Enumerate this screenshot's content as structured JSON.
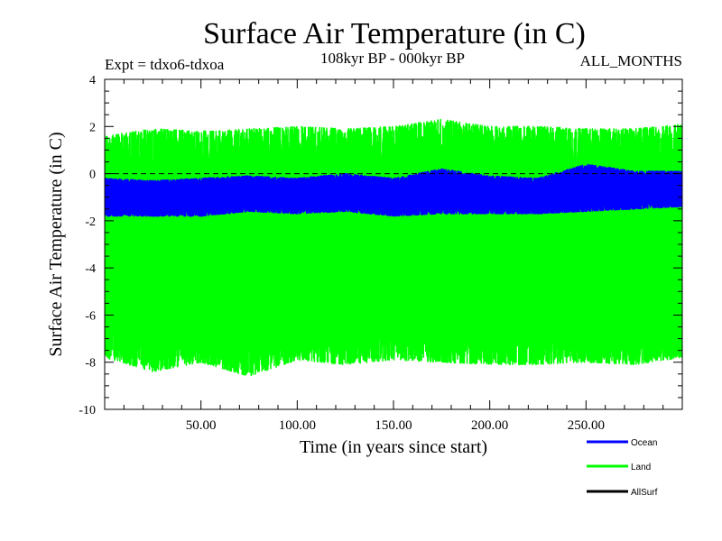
{
  "chart_data": {
    "type": "line",
    "title": "Surface Air Temperature (in C)",
    "subtitle": "108kyr BP - 000kyr BP",
    "left_note": "Expt = tdxo6-tdxoa",
    "right_note": "ALL_MONTHS",
    "xlabel": "Time (in years since start)",
    "ylabel": "Surface Air Temperature (in C)",
    "xlim": [
      0,
      300
    ],
    "ylim": [
      -10,
      4
    ],
    "x_ticks": [
      {
        "value": 50,
        "label": "50.00"
      },
      {
        "value": 100,
        "label": "100.00"
      },
      {
        "value": 150,
        "label": "150.00"
      },
      {
        "value": 200,
        "label": "200.00"
      },
      {
        "value": 250,
        "label": "250.00"
      }
    ],
    "y_ticks": [
      {
        "value": 4,
        "label": "4"
      },
      {
        "value": 2,
        "label": "2"
      },
      {
        "value": 0,
        "label": "0"
      },
      {
        "value": -2,
        "label": "-2"
      },
      {
        "value": -4,
        "label": "-4"
      },
      {
        "value": -6,
        "label": "-6"
      },
      {
        "value": -8,
        "label": "-8"
      },
      {
        "value": -10,
        "label": "-10"
      }
    ],
    "zero_line": {
      "y": 0,
      "style": "dashed"
    },
    "legend_position": "bottom-right",
    "series": [
      {
        "name": "Ocean",
        "color": "#0000ff",
        "envelope_x": [
          0,
          25,
          50,
          75,
          100,
          125,
          150,
          175,
          200,
          225,
          250,
          275,
          300
        ],
        "envelope_upper": [
          -0.2,
          -0.3,
          -0.2,
          -0.1,
          -0.2,
          0.0,
          -0.2,
          0.2,
          -0.1,
          -0.2,
          0.4,
          0.1,
          0.1
        ],
        "envelope_lower": [
          -1.8,
          -1.8,
          -1.8,
          -1.6,
          -1.7,
          -1.6,
          -1.8,
          -1.7,
          -1.7,
          -1.7,
          -1.6,
          -1.5,
          -1.4
        ]
      },
      {
        "name": "Land",
        "color": "#00ff00",
        "envelope_x": [
          0,
          25,
          50,
          75,
          100,
          125,
          150,
          175,
          200,
          225,
          250,
          275,
          300
        ],
        "envelope_upper": [
          1.6,
          1.9,
          1.8,
          1.9,
          2.0,
          1.9,
          2.0,
          2.3,
          2.0,
          2.0,
          1.9,
          1.9,
          2.1
        ],
        "envelope_lower": [
          -7.8,
          -8.4,
          -8.0,
          -8.6,
          -7.9,
          -8.1,
          -7.9,
          -8.0,
          -8.1,
          -8.1,
          -8.0,
          -8.1,
          -7.8
        ]
      },
      {
        "name": "AllSurf",
        "color": "#000000",
        "envelope_x": [],
        "envelope_upper": [],
        "envelope_lower": []
      }
    ]
  }
}
